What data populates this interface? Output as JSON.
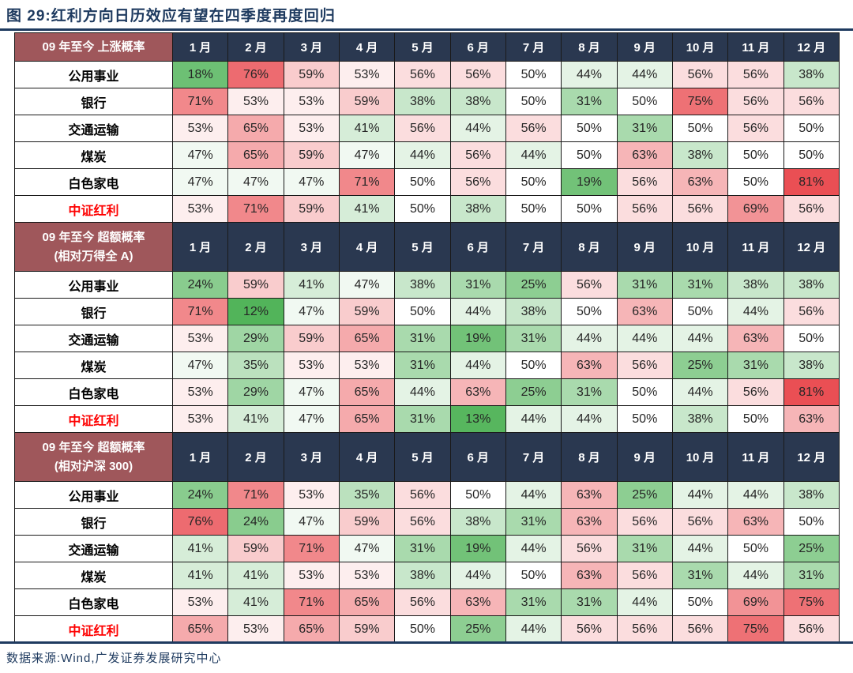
{
  "title": "图 29:红利方向日历效应有望在四季度再度回归",
  "footer": "数据来源:Wind,广发证券发展研究中心",
  "colors": {
    "accent_navy": "#1e3a5f",
    "section_header_bg": "#9f575b",
    "month_header_bg": "#2a3850",
    "highlight_row_text": "#fe0000",
    "scale_green_max": "#52b45a",
    "scale_mid_white": "#ffffff",
    "scale_red_max": "#ea4f54"
  },
  "scale": {
    "mid": 50,
    "green_at": 12,
    "red_at": 81
  },
  "chart_data": {
    "type": "heatmap",
    "title": "图 29:红利方向日历效应有望在四季度再度回归",
    "unit": "%",
    "columns": [
      "1 月",
      "2 月",
      "3 月",
      "4 月",
      "5 月",
      "6 月",
      "7 月",
      "8 月",
      "9 月",
      "10 月",
      "11 月",
      "12 月"
    ],
    "legend_note": "diverging scale: green = low probability, white = 50%, red = high probability",
    "sections": [
      {
        "label_lines": [
          "09 年至今 上涨概率"
        ],
        "rows": [
          {
            "name": "公用事业",
            "highlight": false,
            "values": [
              18,
              76,
              59,
              53,
              56,
              56,
              50,
              44,
              44,
              56,
              56,
              38
            ]
          },
          {
            "name": "银行",
            "highlight": false,
            "values": [
              71,
              53,
              53,
              59,
              38,
              38,
              50,
              31,
              50,
              75,
              56,
              56
            ]
          },
          {
            "name": "交通运输",
            "highlight": false,
            "values": [
              53,
              65,
              53,
              41,
              56,
              44,
              56,
              50,
              31,
              50,
              56,
              50
            ]
          },
          {
            "name": "煤炭",
            "highlight": false,
            "values": [
              47,
              65,
              59,
              47,
              44,
              56,
              44,
              50,
              63,
              38,
              50,
              50
            ]
          },
          {
            "name": "白色家电",
            "highlight": false,
            "values": [
              47,
              47,
              47,
              71,
              50,
              56,
              50,
              19,
              56,
              63,
              50,
              81
            ]
          },
          {
            "name": "中证红利",
            "highlight": true,
            "values": [
              53,
              71,
              59,
              41,
              50,
              38,
              50,
              50,
              56,
              56,
              69,
              56
            ]
          }
        ]
      },
      {
        "label_lines": [
          "09 年至今 超额概率",
          "(相对万得全 A)"
        ],
        "rows": [
          {
            "name": "公用事业",
            "highlight": false,
            "values": [
              24,
              59,
              41,
              47,
              38,
              31,
              25,
              56,
              31,
              31,
              38,
              38
            ]
          },
          {
            "name": "银行",
            "highlight": false,
            "values": [
              71,
              12,
              47,
              59,
              50,
              44,
              38,
              50,
              63,
              50,
              44,
              56
            ]
          },
          {
            "name": "交通运输",
            "highlight": false,
            "values": [
              53,
              29,
              59,
              65,
              31,
              19,
              31,
              44,
              44,
              44,
              63,
              50
            ]
          },
          {
            "name": "煤炭",
            "highlight": false,
            "values": [
              47,
              35,
              53,
              53,
              31,
              44,
              50,
              63,
              56,
              25,
              31,
              38
            ]
          },
          {
            "name": "白色家电",
            "highlight": false,
            "values": [
              53,
              29,
              47,
              65,
              44,
              63,
              25,
              31,
              50,
              44,
              56,
              81
            ]
          },
          {
            "name": "中证红利",
            "highlight": true,
            "values": [
              53,
              41,
              47,
              65,
              31,
              13,
              44,
              44,
              50,
              38,
              50,
              63
            ]
          }
        ]
      },
      {
        "label_lines": [
          "09 年至今 超额概率",
          "(相对沪深 300)"
        ],
        "rows": [
          {
            "name": "公用事业",
            "highlight": false,
            "values": [
              24,
              71,
              53,
              35,
              56,
              50,
              44,
              63,
              25,
              44,
              44,
              38
            ]
          },
          {
            "name": "银行",
            "highlight": false,
            "values": [
              76,
              24,
              47,
              59,
              56,
              38,
              31,
              63,
              56,
              56,
              63,
              50
            ]
          },
          {
            "name": "交通运输",
            "highlight": false,
            "values": [
              41,
              59,
              71,
              47,
              31,
              19,
              44,
              56,
              31,
              44,
              50,
              25
            ]
          },
          {
            "name": "煤炭",
            "highlight": false,
            "values": [
              41,
              41,
              53,
              53,
              38,
              44,
              50,
              63,
              56,
              31,
              44,
              31
            ]
          },
          {
            "name": "白色家电",
            "highlight": false,
            "values": [
              53,
              41,
              71,
              65,
              56,
              63,
              31,
              31,
              44,
              50,
              69,
              75
            ]
          },
          {
            "name": "中证红利",
            "highlight": true,
            "values": [
              65,
              53,
              65,
              59,
              50,
              25,
              44,
              56,
              56,
              56,
              75,
              56
            ]
          }
        ]
      }
    ]
  }
}
